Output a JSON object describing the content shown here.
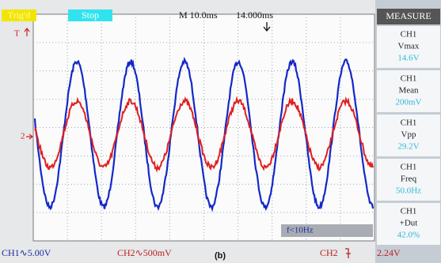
{
  "top_bar": {
    "status": "Trig'd",
    "run_state": "Stop",
    "timebase": "M 10.0ms",
    "trigger_position": "14.000ms"
  },
  "markers": {
    "trigger": "T",
    "ch2": "2"
  },
  "measure_panel": {
    "title": "MEASURE",
    "items": [
      {
        "channel": "CH1",
        "label": "Vmax",
        "value": "14.6V"
      },
      {
        "channel": "CH1",
        "label": "Mean",
        "value": "200mV"
      },
      {
        "channel": "CH1",
        "label": "Vpp",
        "value": "29.2V"
      },
      {
        "channel": "CH1",
        "label": "Freq",
        "value": "50.0Hz"
      },
      {
        "channel": "CH1",
        "label": "+Dut",
        "value": "42.0%"
      }
    ]
  },
  "freq_notice": "f<10Hz",
  "bottom_bar": {
    "ch1_scale": "CH1∿5.00V",
    "ch2_scale": "CH2∿500mV",
    "trigger_source": "CH2",
    "trigger_level": "2.24V"
  },
  "caption": "(b)"
}
